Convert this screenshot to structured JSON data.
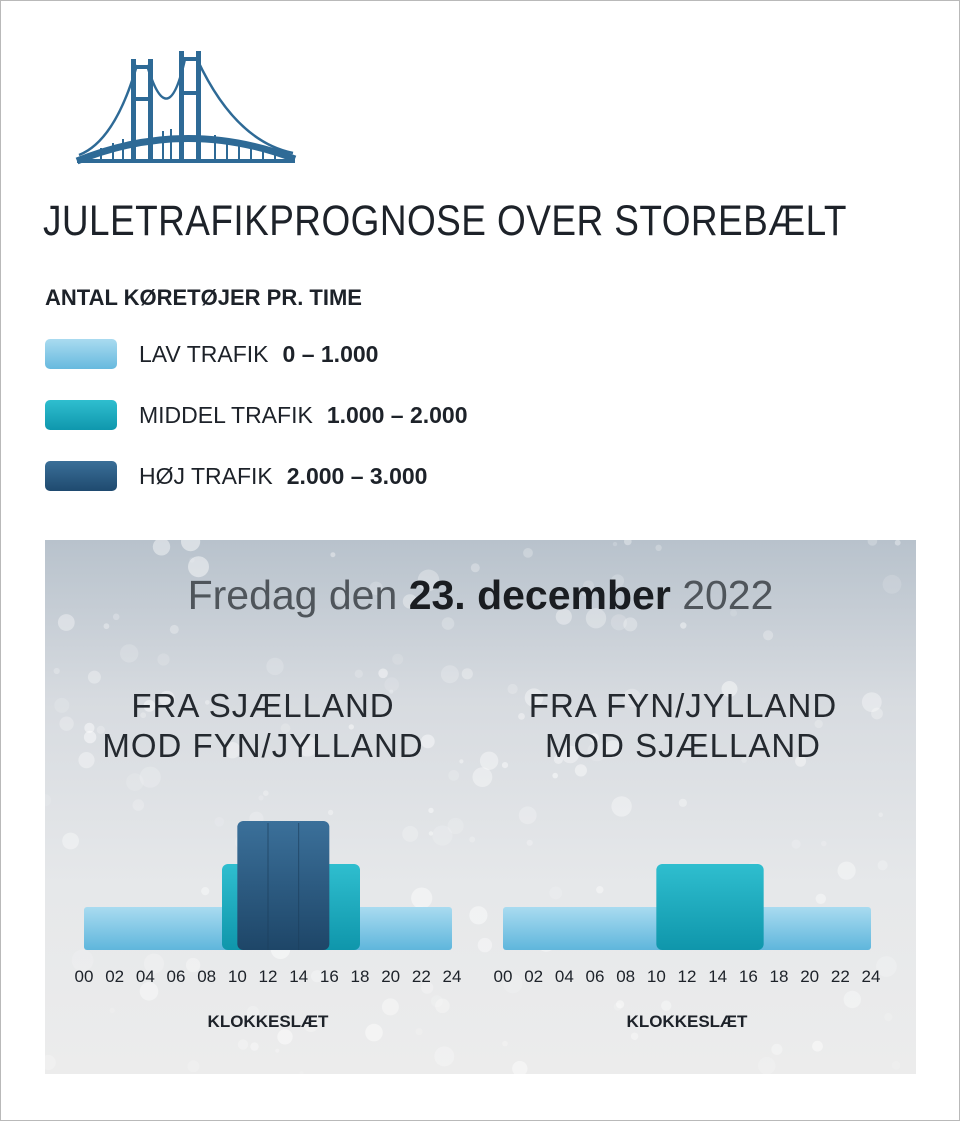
{
  "title": "JULETRAFIKPROGNOSE OVER STOREBÆLT",
  "legend": {
    "title": "ANTAL KØRETØJER PR. TIME",
    "items": [
      {
        "label": "LAV TRAFIK",
        "range": "0 – 1.000",
        "color": "#7cc6e6"
      },
      {
        "label": "MIDDEL TRAFIK",
        "range": "1.000 – 2.000",
        "color": "#16a9bd"
      },
      {
        "label": "HØJ TRAFIK",
        "range": "2.000 – 3.000",
        "color": "#2a5d86"
      }
    ]
  },
  "date": {
    "weekday": "Fredag den",
    "day": "23. december",
    "year": "2022"
  },
  "chart_data": [
    {
      "type": "bar",
      "title_line1": "FRA SJÆLLAND",
      "title_line2": "MOD FYN/JYLLAND",
      "xlabel": "KLOKKESLÆT",
      "ticks": [
        "00",
        "02",
        "04",
        "06",
        "08",
        "10",
        "12",
        "14",
        "16",
        "18",
        "20",
        "22",
        "24"
      ],
      "xlim": [
        0,
        24
      ],
      "levels": [
        "lav",
        "middel",
        "høj"
      ],
      "segments": [
        {
          "start": 0,
          "end": 24,
          "level": 1
        },
        {
          "start": 9,
          "end": 18,
          "level": 2
        },
        {
          "start": 10,
          "end": 16,
          "level": 3
        }
      ]
    },
    {
      "type": "bar",
      "title_line1": "FRA FYN/JYLLAND",
      "title_line2": "MOD SJÆLLAND",
      "xlabel": "KLOKKESLÆT",
      "ticks": [
        "00",
        "02",
        "04",
        "06",
        "08",
        "10",
        "12",
        "14",
        "16",
        "18",
        "20",
        "22",
        "24"
      ],
      "xlim": [
        0,
        24
      ],
      "levels": [
        "lav",
        "middel",
        "høj"
      ],
      "segments": [
        {
          "start": 0,
          "end": 24,
          "level": 1
        },
        {
          "start": 10,
          "end": 17,
          "level": 2
        }
      ]
    }
  ]
}
